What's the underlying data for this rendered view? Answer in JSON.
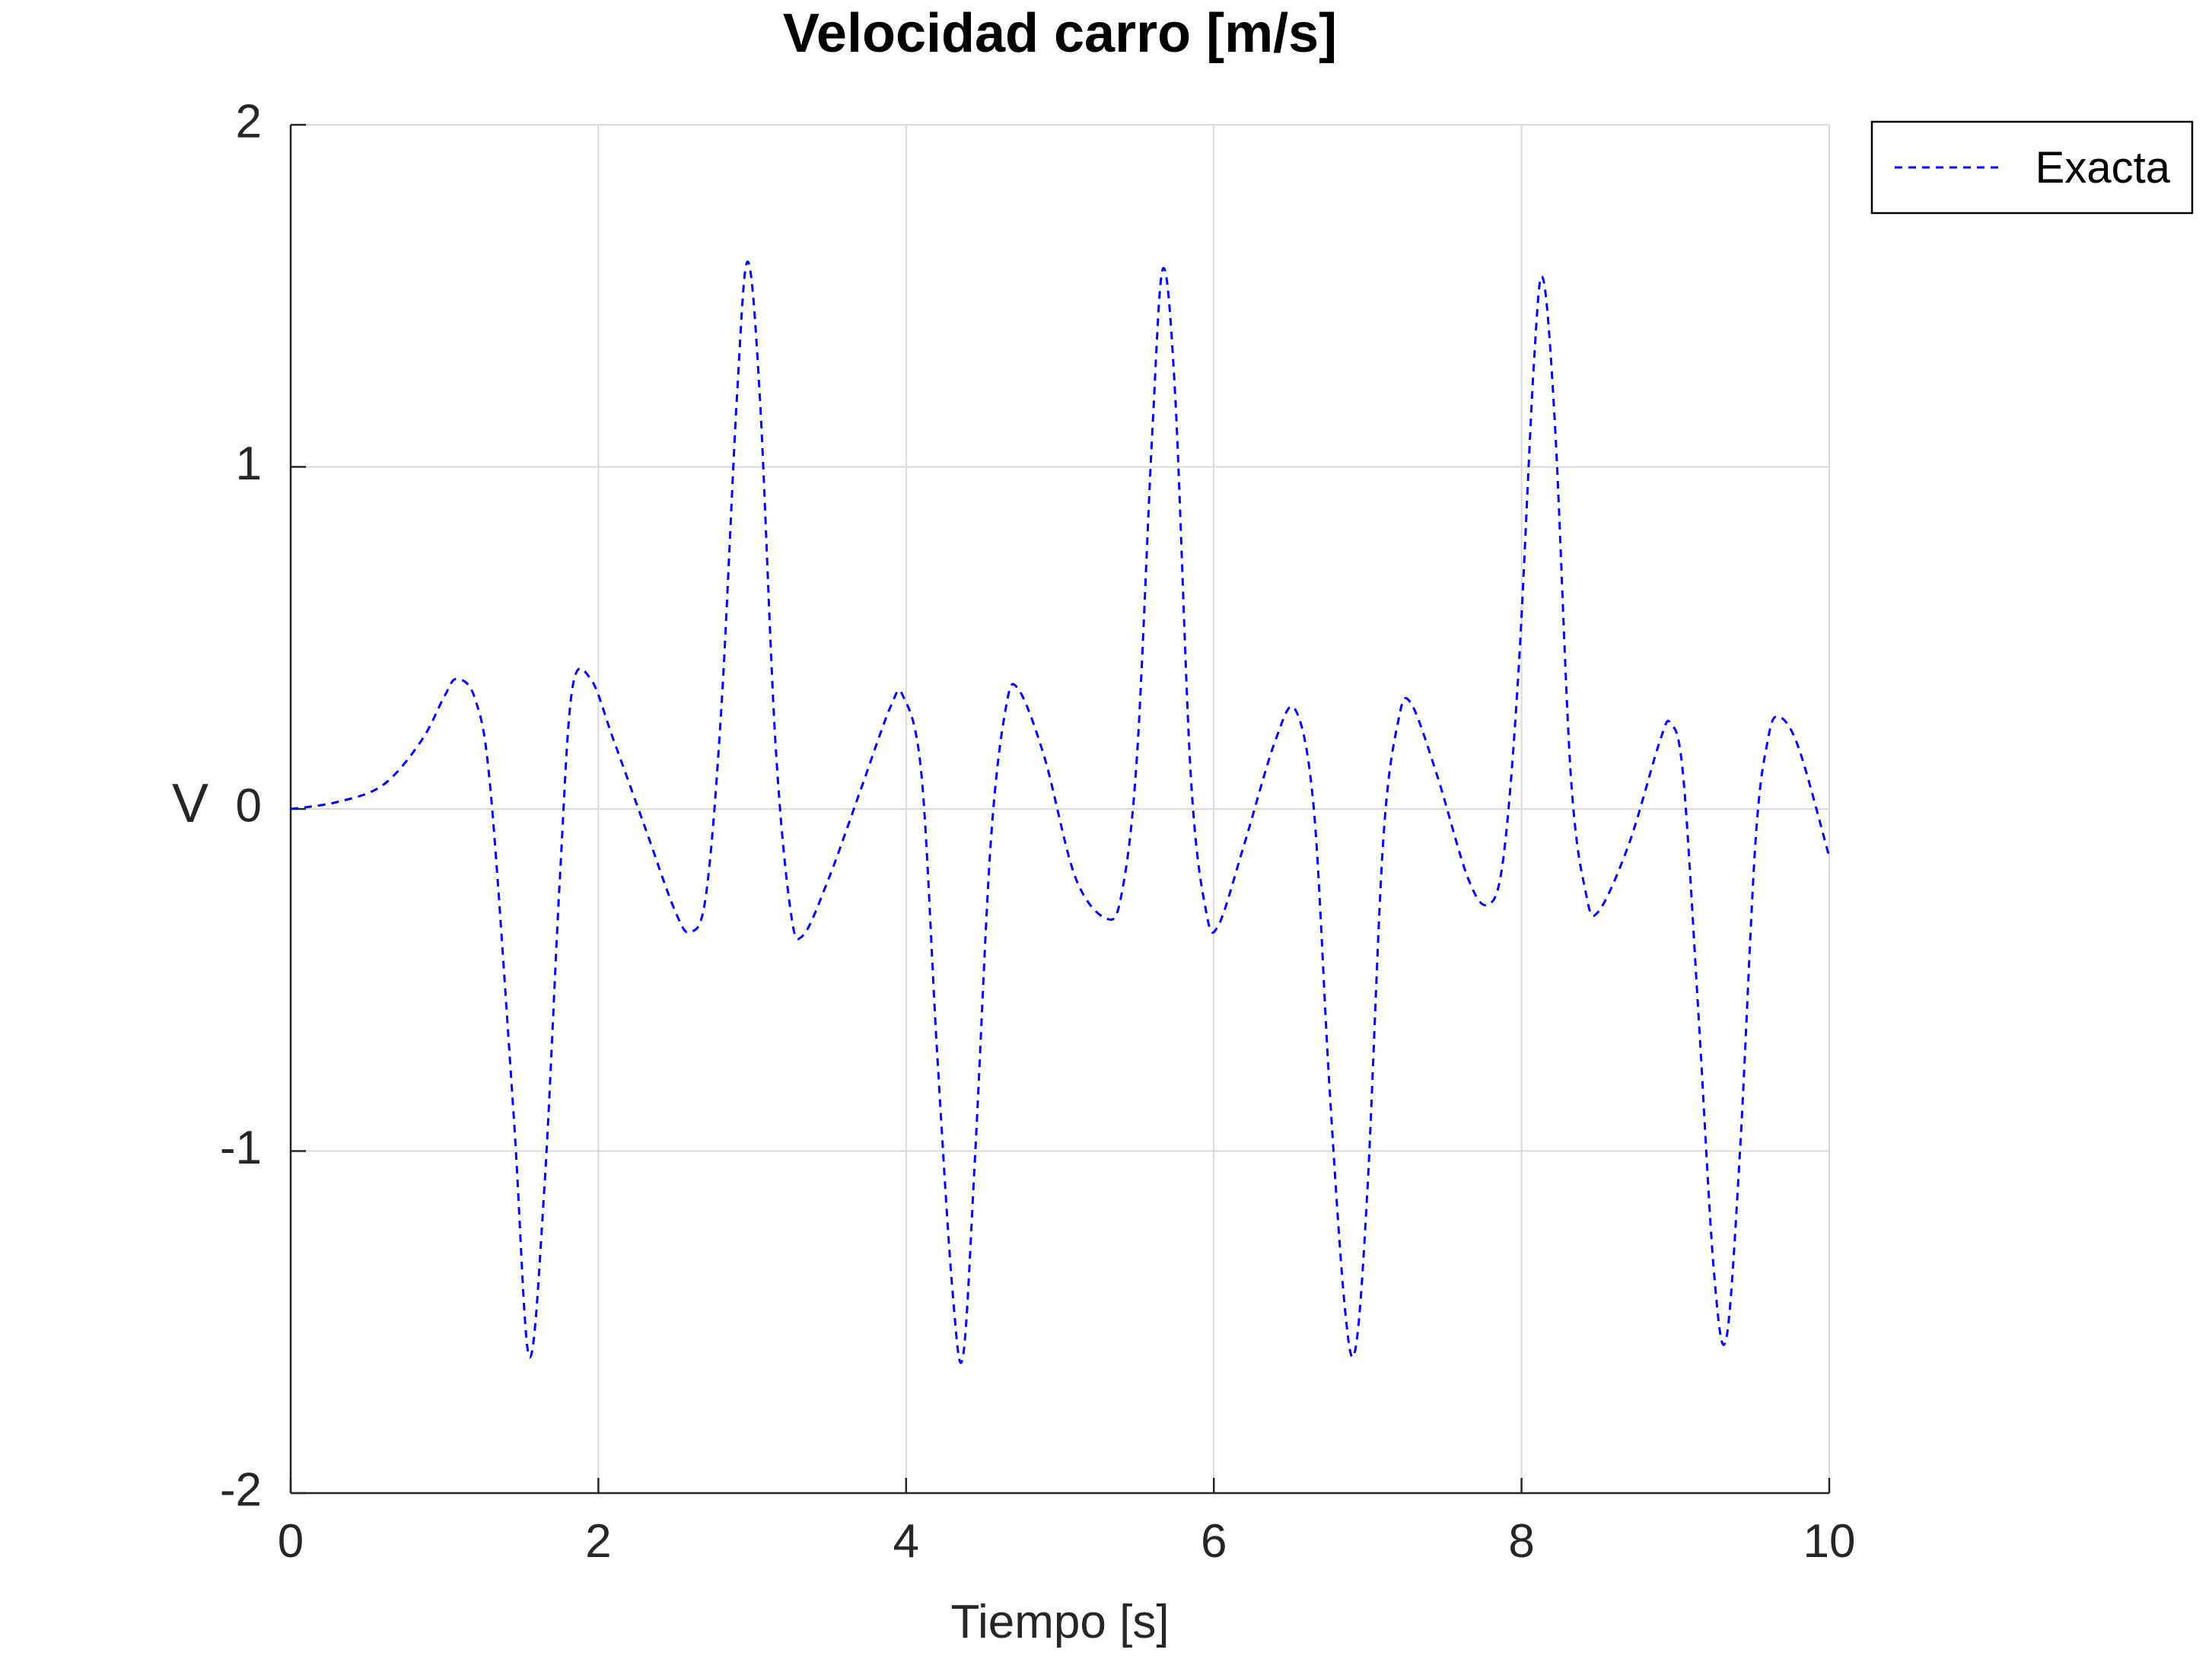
{
  "chart_data": {
    "type": "line",
    "title": "Velocidad carro [m/s]",
    "xlabel": "Tiempo [s]",
    "ylabel": "V",
    "xlim": [
      0,
      10
    ],
    "ylim": [
      -2,
      2
    ],
    "xticks": [
      0,
      2,
      4,
      6,
      8,
      10
    ],
    "yticks": [
      -2,
      -1,
      0,
      1,
      2
    ],
    "grid": true,
    "legend": {
      "position": "outside-top-right"
    },
    "series": [
      {
        "name": "Exacta",
        "color": "#0000ff",
        "style": "dashed",
        "x": [
          0,
          0.3,
          0.6,
          0.85,
          1.0,
          1.08,
          1.2,
          1.3,
          1.45,
          1.55,
          1.65,
          1.75,
          1.83,
          1.95,
          2.1,
          2.3,
          2.5,
          2.6,
          2.7,
          2.8,
          2.9,
          2.97,
          3.05,
          3.15,
          3.25,
          3.33,
          3.5,
          3.7,
          3.9,
          3.98,
          4.1,
          4.2,
          4.3,
          4.37,
          4.45,
          4.55,
          4.65,
          4.73,
          4.9,
          5.1,
          5.3,
          5.4,
          5.5,
          5.6,
          5.67,
          5.75,
          5.85,
          5.95,
          6.03,
          6.2,
          6.4,
          6.53,
          6.65,
          6.75,
          6.85,
          6.92,
          7.0,
          7.1,
          7.2,
          7.28,
          7.45,
          7.65,
          7.78,
          7.88,
          7.98,
          8.08,
          8.14,
          8.22,
          8.32,
          8.42,
          8.5,
          8.7,
          8.9,
          8.97,
          9.05,
          9.15,
          9.25,
          9.33,
          9.42,
          9.52,
          9.6,
          9.67,
          9.8,
          10.0
        ],
        "y": [
          0,
          0.02,
          0.07,
          0.2,
          0.33,
          0.38,
          0.32,
          0.05,
          -0.9,
          -1.6,
          -1.1,
          -0.2,
          0.35,
          0.38,
          0.2,
          -0.05,
          -0.3,
          -0.36,
          -0.25,
          0.3,
          1.2,
          1.6,
          1.2,
          0.2,
          -0.3,
          -0.37,
          -0.2,
          0.05,
          0.3,
          0.33,
          0.1,
          -0.7,
          -1.4,
          -1.6,
          -1.0,
          -0.1,
          0.3,
          0.35,
          0.15,
          -0.2,
          -0.32,
          -0.25,
          0.15,
          1.1,
          1.58,
          1.2,
          0.1,
          -0.3,
          -0.34,
          -0.1,
          0.2,
          0.29,
          0.0,
          -0.8,
          -1.45,
          -1.58,
          -1.1,
          -0.1,
          0.26,
          0.31,
          0.1,
          -0.2,
          -0.28,
          -0.15,
          0.4,
          1.3,
          1.55,
          1.1,
          0.1,
          -0.25,
          -0.3,
          -0.1,
          0.2,
          0.25,
          0.1,
          -0.6,
          -1.35,
          -1.55,
          -1.0,
          -0.1,
          0.2,
          0.27,
          0.18,
          -0.14
        ]
      }
    ]
  }
}
